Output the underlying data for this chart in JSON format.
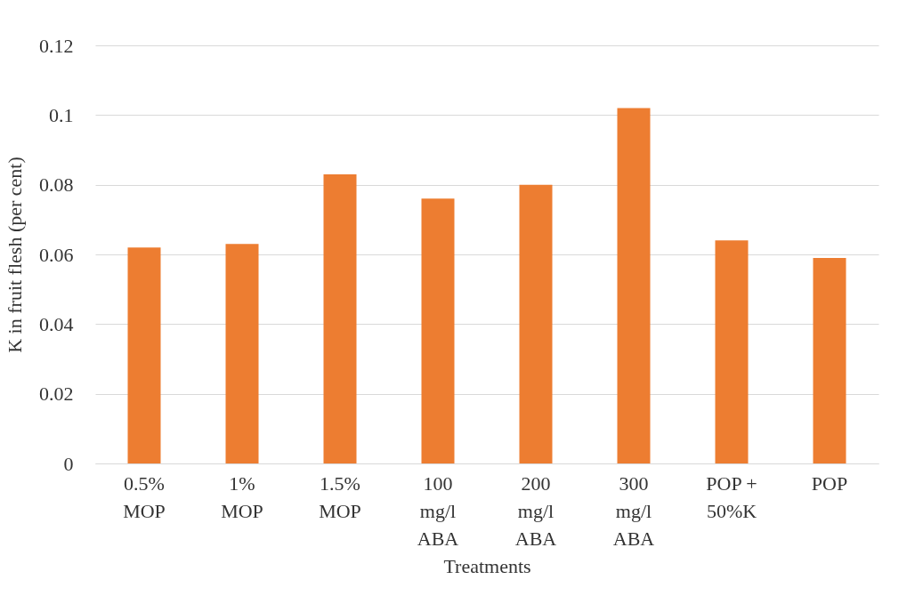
{
  "chart_data": {
    "type": "bar",
    "xlabel": "Treatments",
    "ylabel": "K in fruit flesh (per cent)",
    "categories": [
      "0.5%\nMOP",
      "1%\nMOP",
      "1.5%\nMOP",
      "100\nmg/l\nABA",
      "200\nmg/l\nABA",
      "300\nmg/l\nABA",
      "POP +\n50%K",
      "POP"
    ],
    "values": [
      0.062,
      0.063,
      0.083,
      0.076,
      0.08,
      0.102,
      0.064,
      0.059
    ],
    "color": "#ed7d31",
    "ylim": [
      0,
      0.12
    ],
    "yticks": [
      0,
      0.02,
      0.04,
      0.06,
      0.08,
      0.1,
      0.12
    ],
    "grid": "y"
  }
}
